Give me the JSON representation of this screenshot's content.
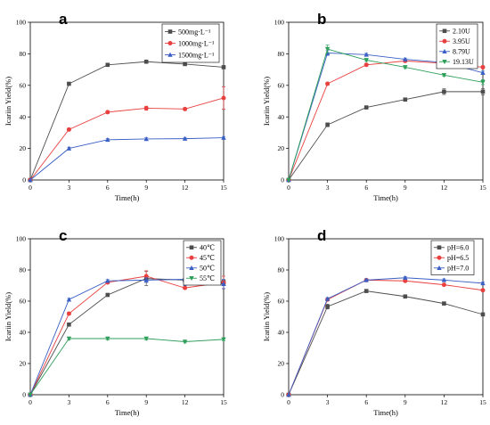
{
  "chart_data": [
    {
      "panel": "a",
      "type": "line",
      "xlabel": "Time(h)",
      "ylabel": "Icariin Yield(%)",
      "xlim": [
        0,
        15
      ],
      "ylim": [
        0,
        100
      ],
      "xticks": [
        "0",
        "3",
        "6",
        "9",
        "12",
        "15"
      ],
      "yticks": [
        "0",
        "20",
        "40",
        "60",
        "80",
        "100"
      ],
      "legend_position": "top-right",
      "x": [
        0,
        3,
        6,
        9,
        12,
        15
      ],
      "series": [
        {
          "name": "500mg·L⁻¹",
          "color": "#4d4d4d",
          "marker": "square",
          "values": [
            0,
            61,
            73,
            75,
            73.5,
            71.5
          ],
          "errors": [
            0,
            0.8,
            0.8,
            0.8,
            0.8,
            0.8
          ]
        },
        {
          "name": "1000mg·L⁻¹",
          "color": "#e8403e",
          "marker": "circle",
          "values": [
            0,
            32,
            43,
            45.5,
            45,
            52
          ],
          "errors": [
            0,
            0.8,
            0.8,
            1.3,
            0.8,
            7
          ]
        },
        {
          "name": "1500mg·L⁻¹",
          "color": "#3a5fc4",
          "marker": "triangle",
          "values": [
            0,
            20,
            25.5,
            26,
            26.2,
            26.8
          ],
          "errors": [
            0,
            0.8,
            0.8,
            0.8,
            0.8,
            0.8
          ]
        }
      ]
    },
    {
      "panel": "b",
      "type": "line",
      "xlabel": "Time(h)",
      "ylabel": "Icariin Yield(%)",
      "xlim": [
        0,
        15
      ],
      "ylim": [
        0,
        100
      ],
      "xticks": [
        "0",
        "3",
        "6",
        "9",
        "12",
        "15"
      ],
      "yticks": [
        "0",
        "20",
        "40",
        "60",
        "80",
        "100"
      ],
      "legend_position": "top-right",
      "x": [
        0,
        3,
        6,
        9,
        12,
        15
      ],
      "series": [
        {
          "name": "2.10U",
          "color": "#4d4d4d",
          "marker": "square",
          "values": [
            0,
            35,
            46,
            51,
            56,
            56
          ],
          "errors": [
            0,
            1.2,
            0.8,
            0.8,
            1.8,
            2
          ]
        },
        {
          "name": "3.95U",
          "color": "#e8403e",
          "marker": "circle",
          "values": [
            0,
            61,
            73,
            75.5,
            74,
            71.5
          ],
          "errors": [
            0,
            0.8,
            0.8,
            0.8,
            0.8,
            0.8
          ]
        },
        {
          "name": "8.79U",
          "color": "#3a5fc4",
          "marker": "triangle",
          "values": [
            0,
            80.5,
            79.5,
            76.5,
            74.5,
            68
          ],
          "errors": [
            0,
            1.5,
            0.8,
            0.8,
            0.8,
            1
          ]
        },
        {
          "name": "19.13U",
          "color": "#2e9f5a",
          "marker": "triangle-down",
          "values": [
            0,
            83,
            76,
            71.5,
            66.5,
            62
          ],
          "errors": [
            0,
            2.5,
            0.8,
            0.8,
            0.8,
            1.5
          ]
        }
      ]
    },
    {
      "panel": "c",
      "type": "line",
      "xlabel": "Time(h)",
      "ylabel": "Icariin Yield(%)",
      "xlim": [
        0,
        15
      ],
      "ylim": [
        0,
        100
      ],
      "xticks": [
        "0",
        "3",
        "6",
        "9",
        "12",
        "15"
      ],
      "yticks": [
        "0",
        "20",
        "40",
        "60",
        "80",
        "100"
      ],
      "legend_position": "top-right",
      "x": [
        0,
        3,
        6,
        9,
        12,
        15
      ],
      "series": [
        {
          "name": "40℃",
          "color": "#4d4d4d",
          "marker": "square",
          "values": [
            0,
            45,
            64,
            74.5,
            73.5,
            72
          ],
          "errors": [
            0,
            0.8,
            0.8,
            4.5,
            0.8,
            1.5
          ]
        },
        {
          "name": "45℃",
          "color": "#e8403e",
          "marker": "circle",
          "values": [
            0,
            52,
            72,
            76,
            68.5,
            72
          ],
          "errors": [
            0,
            0.8,
            0.8,
            3.5,
            0.8,
            4
          ]
        },
        {
          "name": "50℃",
          "color": "#3a5fc4",
          "marker": "triangle",
          "values": [
            0,
            61,
            73,
            73.5,
            74,
            71
          ],
          "errors": [
            0,
            0.8,
            0.8,
            1.5,
            4,
            3
          ]
        },
        {
          "name": "55℃",
          "color": "#2e9f5a",
          "marker": "triangle-down",
          "values": [
            0,
            36,
            36,
            36,
            34,
            35.5
          ],
          "errors": [
            0,
            0.8,
            0.8,
            0.8,
            0.8,
            0.8
          ]
        }
      ]
    },
    {
      "panel": "d",
      "type": "line",
      "xlabel": "Time(h)",
      "ylabel": "Icariin Yield(%)",
      "xlim": [
        0,
        15
      ],
      "ylim": [
        0,
        100
      ],
      "xticks": [
        "0",
        "3",
        "6",
        "9",
        "12",
        "15"
      ],
      "yticks": [
        "0",
        "20",
        "40",
        "60",
        "80",
        "100"
      ],
      "legend_position": "top-right",
      "x": [
        0,
        3,
        6,
        9,
        12,
        15
      ],
      "series": [
        {
          "name": "pH=6.0",
          "color": "#4d4d4d",
          "marker": "square",
          "values": [
            0,
            56.5,
            66.5,
            63,
            58.5,
            51.5
          ],
          "errors": [
            0,
            1.5,
            0.8,
            0.8,
            1,
            0.8
          ]
        },
        {
          "name": "pH=6.5",
          "color": "#e8403e",
          "marker": "circle",
          "values": [
            0,
            61,
            73.5,
            73,
            70.5,
            67
          ],
          "errors": [
            0,
            0.8,
            0.8,
            0.8,
            0.8,
            0.8
          ]
        },
        {
          "name": "pH=7.0",
          "color": "#3a5fc4",
          "marker": "triangle",
          "values": [
            0,
            61.5,
            73.5,
            75,
            73.5,
            71.5
          ],
          "errors": [
            0,
            0.8,
            0.8,
            0.8,
            0.8,
            0.8
          ]
        }
      ]
    }
  ]
}
